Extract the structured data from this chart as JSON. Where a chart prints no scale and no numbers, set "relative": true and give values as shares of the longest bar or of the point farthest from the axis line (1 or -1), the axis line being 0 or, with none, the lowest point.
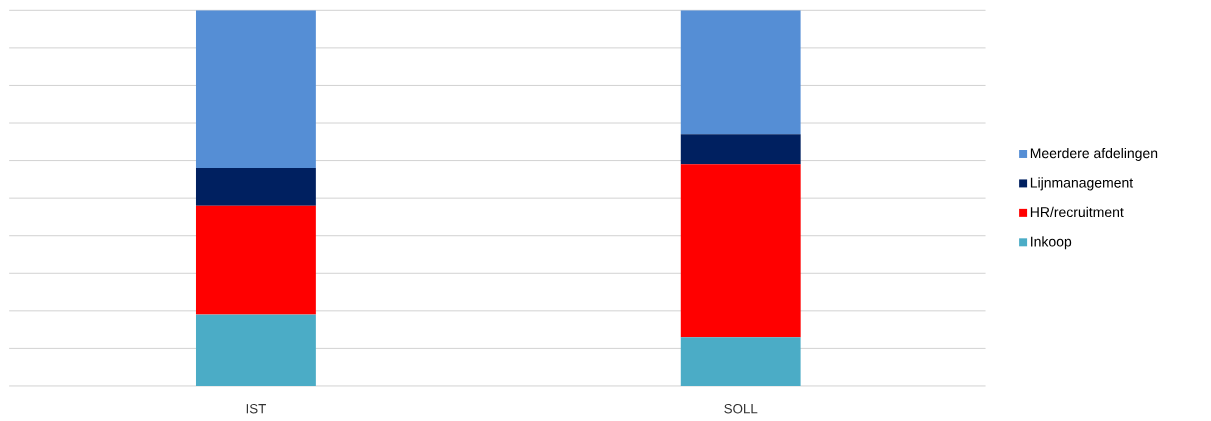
{
  "chart_data": {
    "type": "bar",
    "stacked": true,
    "relative": true,
    "grid": "y",
    "legend": "right",
    "categories": [
      "IST",
      "SOLL"
    ],
    "series": [
      {
        "name": "Inkoop",
        "color": "#4bacc6",
        "values": [
          0.19,
          0.13
        ]
      },
      {
        "name": "HR/recruitment",
        "color": "#ff0000",
        "values": [
          0.29,
          0.46
        ]
      },
      {
        "name": "Lijnmanagement",
        "color": "#002060",
        "values": [
          0.1,
          0.08
        ]
      },
      {
        "name": "Meerdere afdelingen",
        "color": "#558ed5",
        "values": [
          0.42,
          0.33
        ]
      }
    ]
  }
}
